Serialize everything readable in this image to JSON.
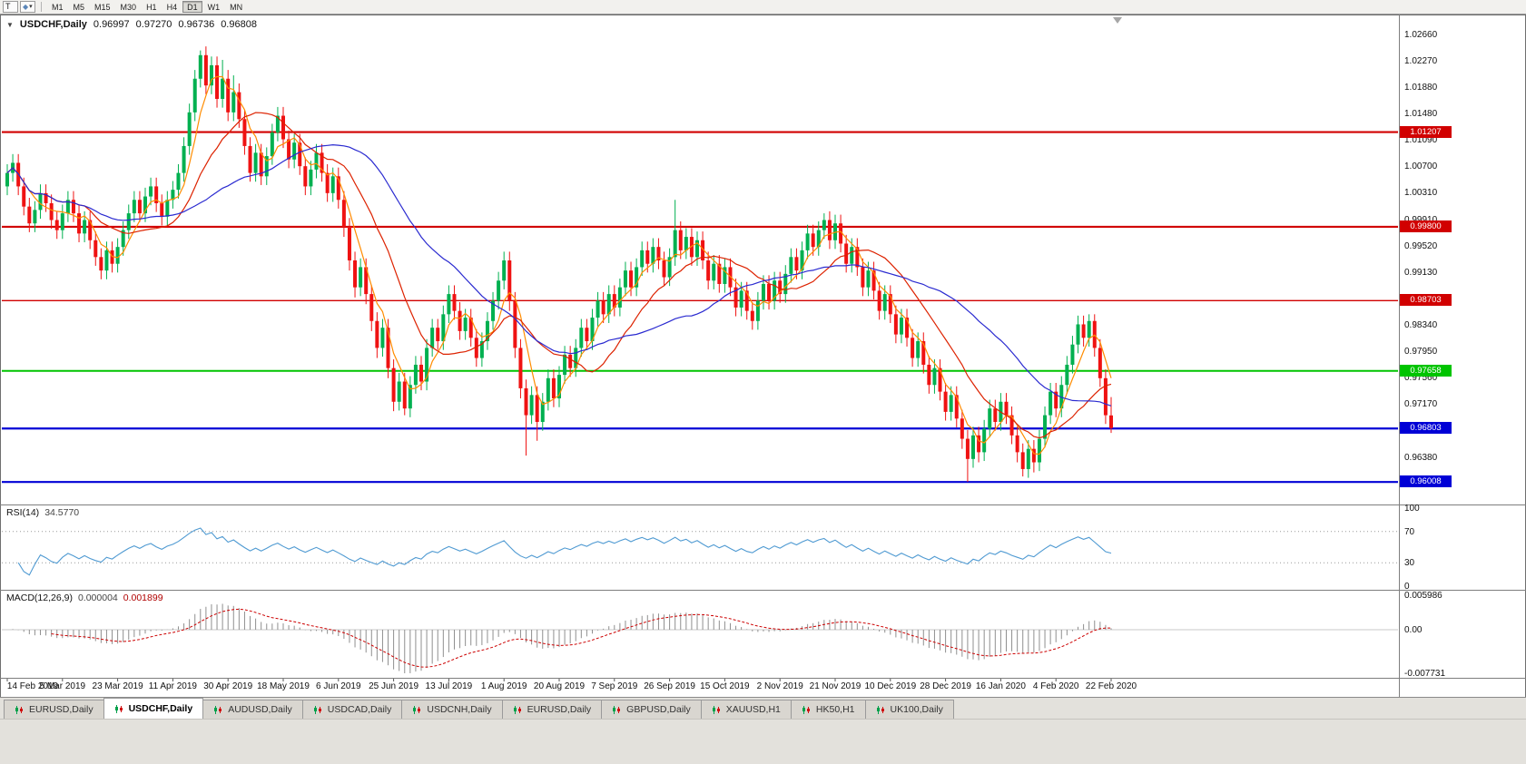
{
  "toolbar": {
    "text_tool_label": "T",
    "shapes_tool_glyph": "◆",
    "chevron_glyph": "▾",
    "timeframes": [
      "M1",
      "M5",
      "M15",
      "M30",
      "H1",
      "H4",
      "D1",
      "W1",
      "MN"
    ],
    "active_timeframe": "D1"
  },
  "chart": {
    "one_click_glyph": "▼",
    "symbol_period": "USDCHF,Daily",
    "ohlc": {
      "open": "0.96997",
      "high": "0.97270",
      "low": "0.96736",
      "close": "0.96808"
    }
  },
  "indicators": {
    "rsi": {
      "label": "RSI(14)",
      "value": "34.5770"
    },
    "macd": {
      "label": "MACD(12,26,9)",
      "value_main": "0.000004",
      "value_signal": "0.001899"
    }
  },
  "tabs": {
    "active_index": 1,
    "items": [
      "EURUSD,Daily",
      "USDCHF,Daily",
      "AUDUSD,Daily",
      "USDCAD,Daily",
      "USDCNH,Daily",
      "EURUSD,Daily",
      "GBPUSD,Daily",
      "XAUUSD,H1",
      "HK50,H1",
      "UK100,Daily"
    ]
  },
  "chart_data": {
    "type": "candlestick",
    "title": "USDCHF,Daily",
    "x_labels": [
      "14 Feb 2019",
      "5 Mar 2019",
      "23 Mar 2019",
      "11 Apr 2019",
      "30 Apr 2019",
      "18 May 2019",
      "6 Jun 2019",
      "25 Jun 2019",
      "13 Jul 2019",
      "1 Aug 2019",
      "20 Aug 2019",
      "7 Sep 2019",
      "26 Sep 2019",
      "15 Oct 2019",
      "2 Nov 2019",
      "21 Nov 2019",
      "10 Dec 2019",
      "28 Dec 2019",
      "16 Jan 2020",
      "4 Feb 2020",
      "22 Feb 2020"
    ],
    "y_ticks": [
      "1.02660",
      "1.02270",
      "1.01880",
      "1.01480",
      "1.01090",
      "1.00700",
      "1.00310",
      "0.99910",
      "0.99520",
      "0.99130",
      "0.98730",
      "0.98340",
      "0.97950",
      "0.97560",
      "0.97170",
      "0.96380"
    ],
    "hlines": [
      {
        "price": 1.01207,
        "label": "1.01207",
        "color": "#d10000",
        "width": 2.2
      },
      {
        "price": 0.998,
        "label": "0.99800",
        "color": "#d10000",
        "width": 2.2
      },
      {
        "price": 0.98703,
        "label": "0.98703",
        "color": "#d10000",
        "width": 1.4
      },
      {
        "price": 0.97658,
        "label": "0.97658",
        "color": "#00c400",
        "width": 2.0
      },
      {
        "price": 0.96803,
        "label": "0.96803",
        "color": "#0000d6",
        "width": 2.2
      },
      {
        "price": 0.96008,
        "label": "0.96008",
        "color": "#0000d6",
        "width": 2.2
      }
    ],
    "colors": {
      "bull": "#00b050",
      "bear": "#ef1212"
    },
    "moving_averages": [
      {
        "period": 5,
        "color": "#ff8c00"
      },
      {
        "period": 15,
        "color": "#dd2200"
      },
      {
        "period": 34,
        "color": "#2a2ad0"
      }
    ],
    "rsi": {
      "period": 14,
      "levels": [
        "100",
        "70",
        "30",
        "0"
      ],
      "color": "#4f9ad2"
    },
    "macd": {
      "fast": 12,
      "slow": 26,
      "signal": 9,
      "bar_color": "#8f8f8f",
      "signal_color": "#cc0000",
      "axis_labels": [
        "0.005986",
        "0.00",
        "-0.007731"
      ]
    },
    "candles": [
      [
        1.004,
        1.0073,
        1.0027,
        1.006
      ],
      [
        1.006,
        1.0088,
        1.0047,
        1.0075
      ],
      [
        1.0075,
        1.0088,
        1.0027,
        1.004
      ],
      [
        1.004,
        1.0053,
        0.9997,
        1.001
      ],
      [
        1.001,
        1.0023,
        0.9972,
        0.9985
      ],
      [
        0.9985,
        1.0018,
        0.9972,
        1.0005
      ],
      [
        1.0005,
        1.0043,
        0.9992,
        1.003
      ],
      [
        1.003,
        1.0043,
        1.0002,
        1.0015
      ],
      [
        1.0015,
        1.0028,
        0.9977,
        0.999
      ],
      [
        0.999,
        1.0003,
        0.9962,
        0.9975
      ],
      [
        0.9975,
        1.0013,
        0.9962,
        1.0
      ],
      [
        1.0,
        1.0033,
        0.9987,
        1.002
      ],
      [
        1.002,
        1.0033,
        0.9987,
        1.0
      ],
      [
        1.0,
        1.0013,
        0.9957,
        0.997
      ],
      [
        0.997,
        1.0003,
        0.9957,
        0.999
      ],
      [
        0.999,
        1.0003,
        0.9947,
        0.996
      ],
      [
        0.996,
        0.9973,
        0.9922,
        0.9935
      ],
      [
        0.9935,
        0.9948,
        0.9902,
        0.9915
      ],
      [
        0.9915,
        0.9958,
        0.9902,
        0.9945
      ],
      [
        0.9945,
        0.9958,
        0.9912,
        0.9925
      ],
      [
        0.9925,
        0.9963,
        0.9912,
        0.995
      ],
      [
        0.995,
        0.9988,
        0.9937,
        0.9975
      ],
      [
        0.9975,
        1.0013,
        0.9962,
        1.0
      ],
      [
        1.0,
        1.0033,
        0.9987,
        1.002
      ],
      [
        1.002,
        1.0033,
        0.9987,
        1.0
      ],
      [
        1.0,
        1.0038,
        0.9987,
        1.0025
      ],
      [
        1.0025,
        1.0053,
        1.0012,
        1.004
      ],
      [
        1.004,
        1.0053,
        1.0002,
        1.0015
      ],
      [
        1.0015,
        1.0028,
        0.9982,
        0.9995
      ],
      [
        0.9995,
        1.0033,
        0.9982,
        1.002
      ],
      [
        1.002,
        1.0048,
        1.0007,
        1.0035
      ],
      [
        1.0035,
        1.0073,
        1.0022,
        1.006
      ],
      [
        1.006,
        1.0113,
        1.0047,
        1.01
      ],
      [
        1.01,
        1.0163,
        1.0087,
        1.015
      ],
      [
        1.015,
        1.0213,
        1.0137,
        1.02
      ],
      [
        1.02,
        1.0242,
        1.0187,
        1.0235
      ],
      [
        1.0235,
        1.0248,
        1.0177,
        1.019
      ],
      [
        1.019,
        1.0233,
        1.0177,
        1.022
      ],
      [
        1.022,
        1.0233,
        1.0157,
        1.017
      ],
      [
        1.017,
        1.0228,
        1.0157,
        1.02
      ],
      [
        1.02,
        1.0213,
        1.0137,
        1.015
      ],
      [
        1.015,
        1.0205,
        1.0137,
        1.018
      ],
      [
        1.018,
        1.0193,
        1.0127,
        1.014
      ],
      [
        1.014,
        1.0153,
        1.0087,
        1.01
      ],
      [
        1.01,
        1.0113,
        1.0047,
        1.006
      ],
      [
        1.006,
        1.0103,
        1.0047,
        1.009
      ],
      [
        1.009,
        1.0103,
        1.0042,
        1.0055
      ],
      [
        1.0055,
        1.0098,
        1.0042,
        1.0085
      ],
      [
        1.0085,
        1.0133,
        1.0072,
        1.012
      ],
      [
        1.012,
        1.0158,
        1.0107,
        1.0145
      ],
      [
        1.0145,
        1.0158,
        1.0097,
        1.011
      ],
      [
        1.011,
        1.0123,
        1.0067,
        1.008
      ],
      [
        1.008,
        1.0118,
        1.0067,
        1.0105
      ],
      [
        1.0105,
        1.0118,
        1.0057,
        1.007
      ],
      [
        1.007,
        1.0083,
        1.0027,
        1.004
      ],
      [
        1.004,
        1.0078,
        1.0027,
        1.0065
      ],
      [
        1.0065,
        1.0103,
        1.0052,
        1.009
      ],
      [
        1.009,
        1.0103,
        1.0047,
        1.006
      ],
      [
        1.006,
        1.0073,
        1.0017,
        1.003
      ],
      [
        1.003,
        1.0068,
        1.0017,
        1.0055
      ],
      [
        1.0055,
        1.0068,
        1.0007,
        1.002
      ],
      [
        1.002,
        1.0033,
        0.9965,
        0.998
      ],
      [
        0.998,
        0.9993,
        0.9915,
        0.993
      ],
      [
        0.993,
        0.9943,
        0.9875,
        0.989
      ],
      [
        0.989,
        0.9933,
        0.9877,
        0.992
      ],
      [
        0.992,
        0.9933,
        0.9865,
        0.988
      ],
      [
        0.988,
        0.9893,
        0.9825,
        0.984
      ],
      [
        0.984,
        0.9853,
        0.9785,
        0.98
      ],
      [
        0.98,
        0.9843,
        0.9787,
        0.983
      ],
      [
        0.983,
        0.9843,
        0.9755,
        0.977
      ],
      [
        0.977,
        0.9783,
        0.9706,
        0.972
      ],
      [
        0.972,
        0.9763,
        0.9707,
        0.975
      ],
      [
        0.975,
        0.9763,
        0.97,
        0.971
      ],
      [
        0.971,
        0.9758,
        0.9697,
        0.9745
      ],
      [
        0.9745,
        0.9788,
        0.9732,
        0.9775
      ],
      [
        0.9775,
        0.9788,
        0.9737,
        0.975
      ],
      [
        0.975,
        0.9813,
        0.9737,
        0.98
      ],
      [
        0.98,
        0.9843,
        0.9787,
        0.983
      ],
      [
        0.983,
        0.9843,
        0.9797,
        0.981
      ],
      [
        0.981,
        0.9863,
        0.9797,
        0.985
      ],
      [
        0.985,
        0.9893,
        0.9837,
        0.988
      ],
      [
        0.988,
        0.9893,
        0.9842,
        0.9855
      ],
      [
        0.9855,
        0.9868,
        0.9812,
        0.9825
      ],
      [
        0.9825,
        0.9858,
        0.9812,
        0.9845
      ],
      [
        0.9845,
        0.9858,
        0.9802,
        0.9815
      ],
      [
        0.9815,
        0.9828,
        0.9772,
        0.9785
      ],
      [
        0.9785,
        0.9823,
        0.9772,
        0.981
      ],
      [
        0.981,
        0.9853,
        0.9797,
        0.984
      ],
      [
        0.984,
        0.9883,
        0.9827,
        0.987
      ],
      [
        0.987,
        0.9913,
        0.9857,
        0.99
      ],
      [
        0.99,
        0.9943,
        0.9887,
        0.993
      ],
      [
        0.993,
        0.9943,
        0.9855,
        0.987
      ],
      [
        0.987,
        0.9883,
        0.9785,
        0.98
      ],
      [
        0.98,
        0.9813,
        0.9725,
        0.974
      ],
      [
        0.974,
        0.9753,
        0.964,
        0.97
      ],
      [
        0.97,
        0.9743,
        0.9687,
        0.973
      ],
      [
        0.973,
        0.9743,
        0.9662,
        0.969
      ],
      [
        0.969,
        0.9733,
        0.9677,
        0.972
      ],
      [
        0.972,
        0.9768,
        0.9707,
        0.9755
      ],
      [
        0.9755,
        0.9768,
        0.9712,
        0.9725
      ],
      [
        0.9725,
        0.9773,
        0.9712,
        0.976
      ],
      [
        0.976,
        0.9803,
        0.9747,
        0.979
      ],
      [
        0.979,
        0.9803,
        0.9757,
        0.977
      ],
      [
        0.977,
        0.9813,
        0.9757,
        0.98
      ],
      [
        0.98,
        0.9843,
        0.9787,
        0.983
      ],
      [
        0.983,
        0.9843,
        0.9797,
        0.981
      ],
      [
        0.981,
        0.9858,
        0.9797,
        0.9845
      ],
      [
        0.9845,
        0.9883,
        0.9832,
        0.987
      ],
      [
        0.987,
        0.9883,
        0.9837,
        0.985
      ],
      [
        0.985,
        0.9893,
        0.9837,
        0.988
      ],
      [
        0.988,
        0.9893,
        0.9847,
        0.986
      ],
      [
        0.986,
        0.9903,
        0.9847,
        0.989
      ],
      [
        0.989,
        0.9928,
        0.9877,
        0.9915
      ],
      [
        0.9915,
        0.9928,
        0.9877,
        0.989
      ],
      [
        0.989,
        0.9933,
        0.9877,
        0.992
      ],
      [
        0.992,
        0.9958,
        0.9907,
        0.9945
      ],
      [
        0.9945,
        0.9958,
        0.9912,
        0.9925
      ],
      [
        0.9925,
        0.9963,
        0.9912,
        0.995
      ],
      [
        0.995,
        0.9963,
        0.9917,
        0.993
      ],
      [
        0.993,
        0.9943,
        0.9892,
        0.9905
      ],
      [
        0.9905,
        0.9948,
        0.9892,
        0.9935
      ],
      [
        0.9935,
        1.002,
        0.9922,
        0.9975
      ],
      [
        0.9975,
        0.9988,
        0.9932,
        0.9945
      ],
      [
        0.9945,
        0.9978,
        0.9932,
        0.9965
      ],
      [
        0.9965,
        0.9978,
        0.9922,
        0.9935
      ],
      [
        0.9935,
        0.9973,
        0.9922,
        0.996
      ],
      [
        0.996,
        0.9973,
        0.9917,
        0.993
      ],
      [
        0.993,
        0.9943,
        0.9887,
        0.99
      ],
      [
        0.99,
        0.9938,
        0.9887,
        0.9925
      ],
      [
        0.9925,
        0.9938,
        0.9882,
        0.9895
      ],
      [
        0.9895,
        0.9933,
        0.9882,
        0.992
      ],
      [
        0.992,
        0.9933,
        0.9877,
        0.989
      ],
      [
        0.989,
        0.9903,
        0.9847,
        0.986
      ],
      [
        0.986,
        0.9898,
        0.9847,
        0.9885
      ],
      [
        0.9885,
        0.9898,
        0.9842,
        0.9855
      ],
      [
        0.9855,
        0.9868,
        0.9827,
        0.984
      ],
      [
        0.984,
        0.9883,
        0.9827,
        0.987
      ],
      [
        0.987,
        0.9908,
        0.9857,
        0.9895
      ],
      [
        0.9895,
        0.9908,
        0.9857,
        0.987
      ],
      [
        0.987,
        0.9913,
        0.9857,
        0.99
      ],
      [
        0.99,
        0.9913,
        0.9867,
        0.988
      ],
      [
        0.988,
        0.9923,
        0.9867,
        0.991
      ],
      [
        0.991,
        0.9948,
        0.9897,
        0.9935
      ],
      [
        0.9935,
        0.9948,
        0.9902,
        0.9915
      ],
      [
        0.9915,
        0.9958,
        0.9902,
        0.9945
      ],
      [
        0.9945,
        0.9983,
        0.9932,
        0.997
      ],
      [
        0.997,
        0.9983,
        0.9937,
        0.995
      ],
      [
        0.995,
        0.9988,
        0.9937,
        0.9975
      ],
      [
        0.9975,
        1.0,
        0.9962,
        0.999
      ],
      [
        0.999,
        1.0003,
        0.9947,
        0.996
      ],
      [
        0.996,
        0.9998,
        0.9947,
        0.9985
      ],
      [
        0.9985,
        0.9998,
        0.9942,
        0.9955
      ],
      [
        0.9955,
        0.9968,
        0.9912,
        0.9925
      ],
      [
        0.9925,
        0.9963,
        0.9912,
        0.995
      ],
      [
        0.995,
        0.9963,
        0.9907,
        0.992
      ],
      [
        0.992,
        0.9933,
        0.9877,
        0.989
      ],
      [
        0.989,
        0.9928,
        0.9877,
        0.9915
      ],
      [
        0.9915,
        0.9928,
        0.9872,
        0.9885
      ],
      [
        0.9885,
        0.9898,
        0.9842,
        0.9855
      ],
      [
        0.9855,
        0.9893,
        0.9842,
        0.988
      ],
      [
        0.988,
        0.9893,
        0.9837,
        0.985
      ],
      [
        0.985,
        0.9863,
        0.9807,
        0.982
      ],
      [
        0.982,
        0.9858,
        0.9807,
        0.9845
      ],
      [
        0.9845,
        0.9858,
        0.9802,
        0.9815
      ],
      [
        0.9815,
        0.9828,
        0.9772,
        0.9785
      ],
      [
        0.9785,
        0.9823,
        0.9772,
        0.981
      ],
      [
        0.981,
        0.9823,
        0.9762,
        0.9775
      ],
      [
        0.9775,
        0.9788,
        0.9732,
        0.9745
      ],
      [
        0.9745,
        0.9783,
        0.9732,
        0.977
      ],
      [
        0.977,
        0.9783,
        0.9722,
        0.9735
      ],
      [
        0.9735,
        0.9748,
        0.9692,
        0.9705
      ],
      [
        0.9705,
        0.9743,
        0.9692,
        0.973
      ],
      [
        0.973,
        0.9743,
        0.9682,
        0.9695
      ],
      [
        0.9695,
        0.9708,
        0.965,
        0.9665
      ],
      [
        0.9665,
        0.9678,
        0.9601,
        0.9635
      ],
      [
        0.9635,
        0.9683,
        0.9622,
        0.967
      ],
      [
        0.967,
        0.9683,
        0.963,
        0.9645
      ],
      [
        0.9645,
        0.9693,
        0.9632,
        0.968
      ],
      [
        0.968,
        0.9723,
        0.9667,
        0.971
      ],
      [
        0.971,
        0.9723,
        0.9677,
        0.969
      ],
      [
        0.969,
        0.9733,
        0.9677,
        0.972
      ],
      [
        0.972,
        0.9733,
        0.9687,
        0.97
      ],
      [
        0.97,
        0.9713,
        0.9657,
        0.967
      ],
      [
        0.967,
        0.9683,
        0.963,
        0.9645
      ],
      [
        0.9645,
        0.9658,
        0.9609,
        0.962
      ],
      [
        0.962,
        0.9663,
        0.9607,
        0.965
      ],
      [
        0.965,
        0.9663,
        0.9615,
        0.963
      ],
      [
        0.963,
        0.9678,
        0.9617,
        0.9665
      ],
      [
        0.9665,
        0.9713,
        0.9652,
        0.97
      ],
      [
        0.97,
        0.9748,
        0.9687,
        0.9735
      ],
      [
        0.9735,
        0.9748,
        0.9697,
        0.971
      ],
      [
        0.971,
        0.9758,
        0.9697,
        0.9745
      ],
      [
        0.9745,
        0.9788,
        0.9732,
        0.9775
      ],
      [
        0.9775,
        0.9818,
        0.9762,
        0.9805
      ],
      [
        0.9805,
        0.9848,
        0.9792,
        0.9835
      ],
      [
        0.9835,
        0.9848,
        0.9802,
        0.9815
      ],
      [
        0.9815,
        0.985,
        0.9802,
        0.984
      ],
      [
        0.984,
        0.985,
        0.9787,
        0.98
      ],
      [
        0.98,
        0.9813,
        0.9742,
        0.9755
      ],
      [
        0.9755,
        0.9768,
        0.9687,
        0.97
      ],
      [
        0.96997,
        0.9727,
        0.96736,
        0.96808
      ]
    ]
  }
}
